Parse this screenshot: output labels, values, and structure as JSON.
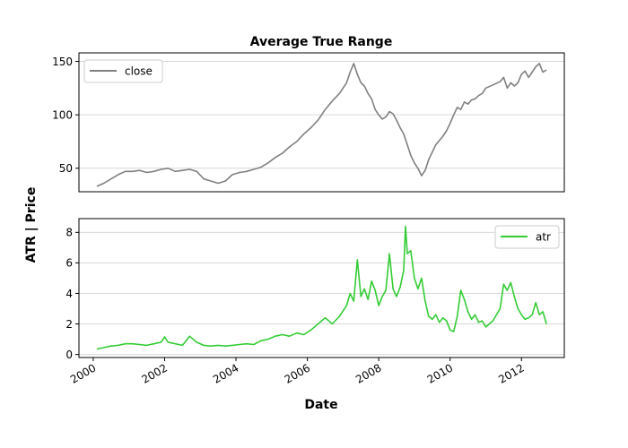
{
  "chart_data": {
    "type": "line",
    "title": "Average True Range",
    "xlabel": "Date",
    "ylabel": "ATR | Price",
    "x_range": [
      1999.6,
      2013.2
    ],
    "x_ticks": [
      2000,
      2002,
      2004,
      2006,
      2008,
      2010,
      2012
    ],
    "x_tick_labels": [
      "2000",
      "2002",
      "2004",
      "2006",
      "2008",
      "2010",
      "2012"
    ],
    "panels": [
      {
        "id": "price",
        "ylim": [
          28,
          158
        ],
        "yticks": [
          50,
          100,
          150
        ],
        "ytick_labels": [
          "50",
          "100",
          "150"
        ],
        "grid": "horizontal",
        "legend_placement": "top-left",
        "series": [
          {
            "name": "close",
            "color": "#808080",
            "x": [
              2000.1,
              2000.3,
              2000.5,
              2000.7,
              2000.9,
              2001.1,
              2001.3,
              2001.5,
              2001.7,
              2001.9,
              2002.1,
              2002.3,
              2002.5,
              2002.7,
              2002.9,
              2003.1,
              2003.3,
              2003.5,
              2003.7,
              2003.9,
              2004.1,
              2004.3,
              2004.5,
              2004.7,
              2004.9,
              2005.1,
              2005.3,
              2005.5,
              2005.7,
              2005.9,
              2006.1,
              2006.3,
              2006.5,
              2006.7,
              2006.9,
              2007.0,
              2007.1,
              2007.2,
              2007.3,
              2007.4,
              2007.5,
              2007.6,
              2007.7,
              2007.8,
              2007.9,
              2008.0,
              2008.1,
              2008.2,
              2008.3,
              2008.4,
              2008.5,
              2008.6,
              2008.7,
              2008.8,
              2008.9,
              2009.0,
              2009.1,
              2009.2,
              2009.3,
              2009.4,
              2009.5,
              2009.6,
              2009.7,
              2009.8,
              2009.9,
              2010.0,
              2010.1,
              2010.2,
              2010.3,
              2010.4,
              2010.5,
              2010.6,
              2010.7,
              2010.8,
              2010.9,
              2011.0,
              2011.2,
              2011.4,
              2011.5,
              2011.6,
              2011.7,
              2011.8,
              2011.9,
              2012.0,
              2012.1,
              2012.2,
              2012.3,
              2012.4,
              2012.5,
              2012.6,
              2012.7
            ],
            "y": [
              33,
              36,
              40,
              44,
              47,
              47,
              48,
              46,
              47,
              49,
              50,
              47,
              48,
              49,
              47,
              40,
              38,
              36,
              38,
              44,
              46,
              47,
              49,
              51,
              55,
              60,
              64,
              70,
              75,
              82,
              88,
              95,
              105,
              113,
              120,
              125,
              130,
              140,
              148,
              138,
              130,
              127,
              120,
              115,
              105,
              100,
              96,
              98,
              103,
              101,
              95,
              88,
              82,
              72,
              62,
              55,
              50,
              43,
              48,
              58,
              65,
              72,
              76,
              80,
              85,
              92,
              100,
              107,
              105,
              112,
              110,
              114,
              115,
              118,
              120,
              125,
              128,
              131,
              135,
              125,
              130,
              127,
              130,
              138,
              141,
              135,
              140,
              145,
              148,
              140,
              142
            ]
          }
        ]
      },
      {
        "id": "atr",
        "ylim": [
          -0.2,
          8.9
        ],
        "yticks": [
          0,
          2,
          4,
          6,
          8
        ],
        "ytick_labels": [
          "0",
          "2",
          "4",
          "6",
          "8"
        ],
        "grid": "horizontal",
        "legend_placement": "top-right",
        "series": [
          {
            "name": "atr",
            "color": "#33cc33",
            "x": [
              2000.1,
              2000.3,
              2000.5,
              2000.7,
              2000.9,
              2001.1,
              2001.3,
              2001.5,
              2001.7,
              2001.9,
              2002.0,
              2002.1,
              2002.3,
              2002.5,
              2002.7,
              2002.9,
              2003.1,
              2003.3,
              2003.5,
              2003.7,
              2003.9,
              2004.1,
              2004.3,
              2004.5,
              2004.7,
              2004.9,
              2005.1,
              2005.3,
              2005.5,
              2005.7,
              2005.9,
              2006.1,
              2006.3,
              2006.5,
              2006.7,
              2006.9,
              2007.1,
              2007.2,
              2007.3,
              2007.4,
              2007.5,
              2007.6,
              2007.7,
              2007.8,
              2007.9,
              2008.0,
              2008.1,
              2008.2,
              2008.3,
              2008.4,
              2008.5,
              2008.6,
              2008.7,
              2008.75,
              2008.8,
              2008.9,
              2009.0,
              2009.1,
              2009.2,
              2009.3,
              2009.4,
              2009.5,
              2009.6,
              2009.7,
              2009.8,
              2009.9,
              2010.0,
              2010.1,
              2010.2,
              2010.3,
              2010.4,
              2010.5,
              2010.6,
              2010.7,
              2010.8,
              2010.9,
              2011.0,
              2011.2,
              2011.4,
              2011.5,
              2011.6,
              2011.7,
              2011.8,
              2011.9,
              2012.0,
              2012.1,
              2012.2,
              2012.3,
              2012.4,
              2012.5,
              2012.6,
              2012.7
            ],
            "y": [
              0.35,
              0.45,
              0.55,
              0.6,
              0.7,
              0.7,
              0.65,
              0.6,
              0.7,
              0.8,
              1.15,
              0.8,
              0.7,
              0.6,
              1.2,
              0.8,
              0.6,
              0.55,
              0.6,
              0.55,
              0.6,
              0.65,
              0.7,
              0.65,
              0.9,
              1.0,
              1.2,
              1.3,
              1.2,
              1.4,
              1.3,
              1.6,
              2.0,
              2.4,
              2.0,
              2.5,
              3.2,
              4.0,
              3.5,
              6.2,
              3.8,
              4.3,
              3.6,
              4.8,
              4.2,
              3.2,
              3.8,
              4.2,
              6.6,
              4.3,
              3.8,
              4.4,
              5.5,
              8.4,
              6.6,
              6.8,
              5.0,
              4.3,
              5.0,
              3.5,
              2.5,
              2.3,
              2.6,
              2.1,
              2.4,
              2.2,
              1.6,
              1.5,
              2.5,
              4.2,
              3.6,
              2.8,
              2.3,
              2.6,
              2.1,
              2.2,
              1.8,
              2.2,
              3.0,
              4.6,
              4.2,
              4.7,
              3.8,
              3.0,
              2.6,
              2.3,
              2.4,
              2.6,
              3.4,
              2.6,
              2.8,
              2.0
            ]
          }
        ]
      }
    ]
  }
}
